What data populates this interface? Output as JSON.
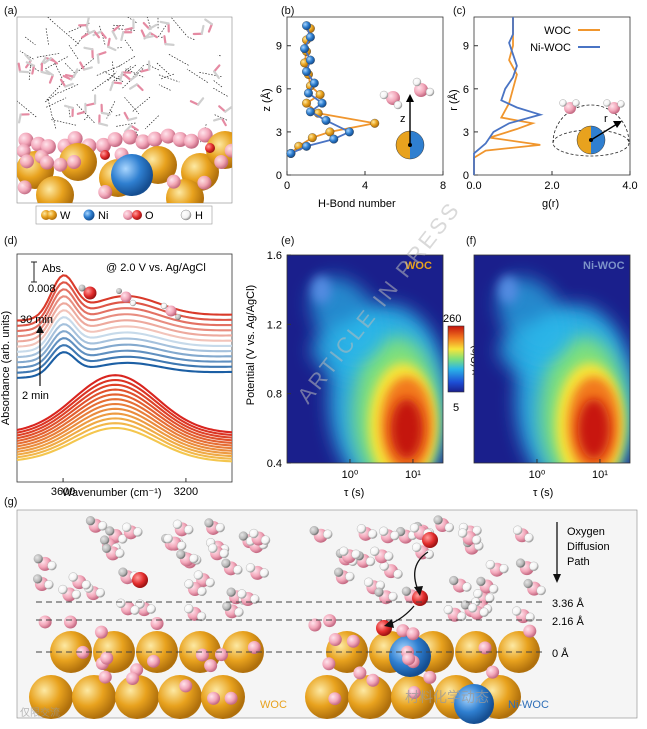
{
  "panels": {
    "a": {
      "label": "(a)",
      "legend": [
        {
          "symbol": "W",
          "color": "#e8a21e"
        },
        {
          "symbol": "Ni",
          "color": "#2f7fd0"
        },
        {
          "symbol": "O",
          "color": "#f2a6b9",
          "color2": "#e32d2d"
        },
        {
          "symbol": "H",
          "color": "#ffffff"
        }
      ]
    },
    "b": {
      "label": "(b)",
      "xlabel": "H-Bond number",
      "ylabel": "z (Å)",
      "xticks": [
        "0",
        "4",
        "8"
      ],
      "yticks": [
        "0",
        "3",
        "6",
        "9"
      ]
    },
    "c": {
      "label": "(c)",
      "xlabel": "g(r)",
      "ylabel": "r (Å)",
      "xticks": [
        "0.0",
        "2.0",
        "4.0"
      ],
      "yticks": [
        "0",
        "3",
        "6",
        "9"
      ],
      "legend": [
        {
          "name": "WOC",
          "color": "#f0962e"
        },
        {
          "name": "Ni-WOC",
          "color": "#4a74c4"
        }
      ]
    },
    "d": {
      "label": "(d)",
      "scale_text": "Abs.",
      "scale_value": "0.008",
      "condition": "@ 2.0 V vs. Ag/AgCl",
      "time_top": "30 min",
      "time_bottom": "2 min",
      "xlabel": "Wavenumber (cm⁻¹)",
      "ylabel": "Absorbance (arb. units)",
      "xticks": [
        "3600",
        "3200"
      ]
    },
    "e": {
      "label": "(e)",
      "tag": "WOC",
      "ylabel": "Potential (V vs. Ag/AgCl)",
      "xlabel": "τ (s)",
      "yticks": [
        "0.4",
        "0.8",
        "1.2",
        "1.6"
      ],
      "xticks": [
        "10⁰",
        "10¹"
      ],
      "colorbar": {
        "label": "γ (Ω/s)",
        "max": "260",
        "min": "5"
      }
    },
    "f": {
      "label": "(f)",
      "tag": "Ni-WOC",
      "xlabel": "τ (s)",
      "xticks": [
        "10⁰",
        "10¹"
      ]
    },
    "g": {
      "label": "(g)",
      "left_tag": "WOC",
      "right_tag": "Ni-WOC",
      "path_label": [
        "Oxygen",
        "Diffusion",
        "Path"
      ],
      "levels": [
        "3.36 Å",
        "2.16 Å",
        "0 Å"
      ]
    }
  },
  "watermarks": [
    "ARTICLE IN PRESS",
    "材料化学动态",
    "仅限交流"
  ],
  "chart_data": [
    {
      "type": "line",
      "panel": "b",
      "xlabel": "H-Bond number",
      "ylabel": "z (Å)",
      "xlim": [
        0,
        8
      ],
      "ylim": [
        0,
        11
      ],
      "series": [
        {
          "color": "#f0962e",
          "x": [
            0.2,
            0.6,
            1.3,
            2.2,
            4.5,
            1.6,
            1.0,
            1.7,
            1.2,
            1.1,
            0.9,
            1.0,
            1.0,
            1.2
          ],
          "y": [
            1.5,
            2.0,
            2.6,
            3.0,
            3.6,
            4.3,
            5.0,
            5.6,
            6.2,
            7.0,
            7.8,
            8.6,
            9.4,
            10.2
          ]
        },
        {
          "color": "#4a74c4",
          "x": [
            0.2,
            1.0,
            2.4,
            3.2,
            2.0,
            1.2,
            1.8,
            1.1,
            1.4,
            1.0,
            1.2,
            0.9,
            1.2,
            1.0
          ],
          "y": [
            1.5,
            2.0,
            2.5,
            3.0,
            3.8,
            4.4,
            5.0,
            5.7,
            6.4,
            7.2,
            8.0,
            8.8,
            9.6,
            10.4
          ]
        }
      ]
    },
    {
      "type": "line",
      "panel": "c",
      "xlabel": "g(r)",
      "ylabel": "r (Å)",
      "xlim": [
        0,
        4
      ],
      "ylim": [
        0,
        11
      ],
      "series": [
        {
          "name": "WOC",
          "color": "#f0962e",
          "x": [
            0.0,
            0.0,
            0.3,
            1.7,
            0.4,
            1.1,
            1.5,
            0.7,
            0.9,
            1.0,
            1.1,
            0.9,
            1.0,
            1.0,
            1.0,
            1.0
          ],
          "y": [
            0.0,
            1.2,
            1.7,
            2.1,
            2.6,
            3.2,
            3.6,
            4.0,
            5.0,
            6.0,
            7.0,
            8.0,
            9.0,
            9.8,
            10.3,
            11.0
          ]
        },
        {
          "name": "Ni-WOC",
          "color": "#4a74c4",
          "x": [
            0.0,
            0.0,
            0.3,
            0.5,
            0.9,
            1.7,
            1.1,
            0.7,
            0.8,
            1.0,
            1.1,
            1.0,
            0.9,
            1.0,
            1.0,
            1.0
          ],
          "y": [
            0.0,
            1.5,
            2.2,
            3.0,
            3.6,
            4.2,
            4.7,
            5.2,
            6.0,
            6.8,
            7.6,
            8.4,
            9.2,
            9.8,
            10.4,
            11.0
          ]
        }
      ]
    },
    {
      "type": "line",
      "panel": "d",
      "xlabel": "Wavenumber (cm⁻¹)",
      "ylabel": "Absorbance (arb. units)",
      "xlim": [
        3750,
        3050
      ],
      "series_groups": [
        {
          "group": "Ni-WOC",
          "count": 12,
          "color_from": "#1c5fa4",
          "color_to": "#d93a2a",
          "peak_x": 3600,
          "shoulder_x": 3400
        },
        {
          "group": "WOC",
          "count": 12,
          "color_from": "#f4c64e",
          "color_to": "#d9251f",
          "peak_x": 3430
        }
      ]
    },
    {
      "type": "heatmap",
      "panel": "e",
      "title": "WOC",
      "xlabel": "τ (s)",
      "ylabel": "Potential (V vs. Ag/AgCl)",
      "xscale": "log",
      "xlim": [
        0.1,
        30
      ],
      "ylim": [
        0.4,
        1.6
      ],
      "zlim": [
        5,
        260
      ],
      "peaks": [
        {
          "tau": 8,
          "potential": 0.62,
          "value": 260
        },
        {
          "tau": 0.35,
          "potential": 1.4,
          "value": 60
        }
      ]
    },
    {
      "type": "heatmap",
      "panel": "f",
      "title": "Ni-WOC",
      "xlabel": "τ (s)",
      "xscale": "log",
      "xlim": [
        0.1,
        30
      ],
      "ylim": [
        0.4,
        1.6
      ],
      "zlim": [
        5,
        260
      ],
      "peaks": [
        {
          "tau": 8,
          "potential": 0.62,
          "value": 240
        },
        {
          "tau": 0.35,
          "potential": 1.4,
          "value": 55
        }
      ]
    }
  ]
}
